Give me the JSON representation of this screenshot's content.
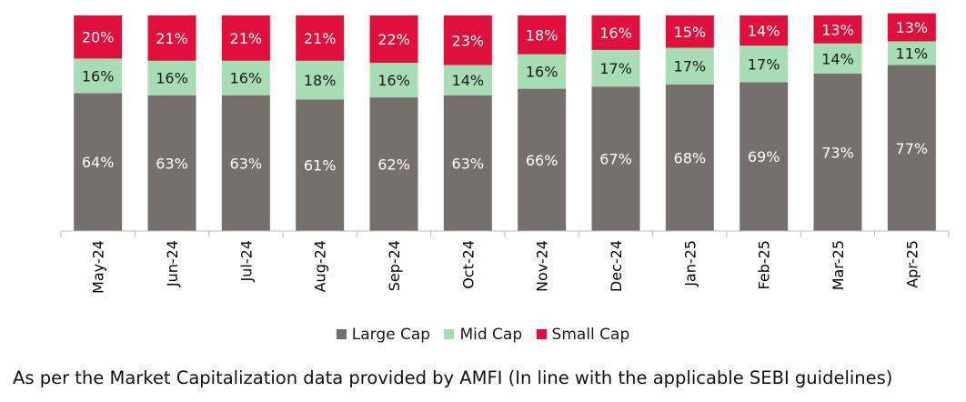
{
  "chart_data": {
    "type": "bar",
    "stacked": true,
    "categories": [
      "May-24",
      "Jun-24",
      "Jul-24",
      "Aug-24",
      "Sep-24",
      "Oct-24",
      "Nov-24",
      "Dec-24",
      "Jan-25",
      "Feb-25",
      "Mar-25",
      "Apr-25"
    ],
    "series": [
      {
        "name": "Large Cap",
        "values": [
          64,
          63,
          63,
          61,
          62,
          63,
          66,
          67,
          68,
          69,
          73,
          77
        ],
        "color": "#76706c",
        "label_color": "#ffffff"
      },
      {
        "name": "Mid Cap",
        "values": [
          16,
          16,
          16,
          18,
          16,
          14,
          16,
          17,
          17,
          17,
          14,
          11
        ],
        "color": "#a8dcb5",
        "label_color": "#1a1a1a"
      },
      {
        "name": "Small Cap",
        "values": [
          20,
          21,
          21,
          21,
          22,
          23,
          18,
          16,
          15,
          14,
          13,
          13
        ],
        "color": "#e0103c",
        "label_color": "#ffffff"
      }
    ],
    "value_suffix": "%",
    "ylim": [
      0,
      100
    ],
    "grid": false,
    "legend_position": "bottom-center"
  },
  "footnote": "As per the Market Capitalization data provided by AMFI (In line with the applicable SEBI guidelines)"
}
